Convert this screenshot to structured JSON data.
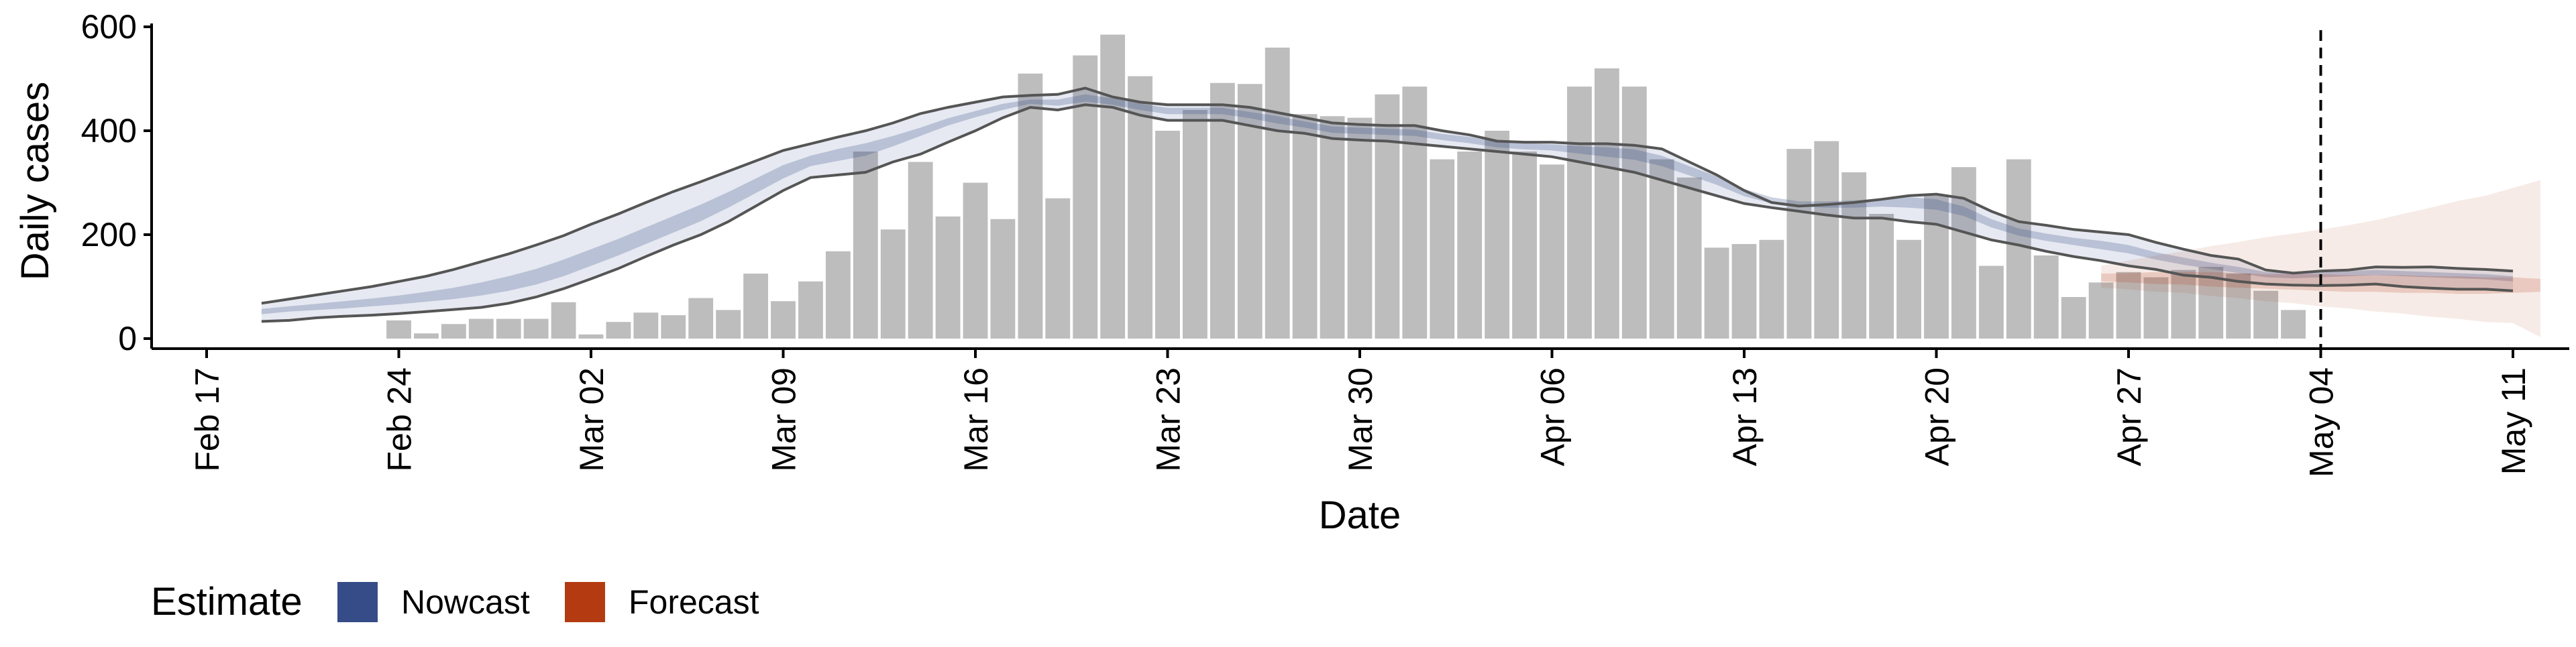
{
  "chart_data": {
    "type": "bar",
    "xlabel": "Date",
    "ylabel": "Daily cases",
    "ylim": [
      0,
      600
    ],
    "yticks": [
      0,
      200,
      400,
      600
    ],
    "xlim": [
      "2020-02-17",
      "2020-05-11"
    ],
    "xticks": [
      {
        "date": "2020-02-17",
        "label": "Feb 17"
      },
      {
        "date": "2020-02-24",
        "label": "Feb 24"
      },
      {
        "date": "2020-03-02",
        "label": "Mar 02"
      },
      {
        "date": "2020-03-09",
        "label": "Mar 09"
      },
      {
        "date": "2020-03-16",
        "label": "Mar 16"
      },
      {
        "date": "2020-03-23",
        "label": "Mar 23"
      },
      {
        "date": "2020-03-30",
        "label": "Mar 30"
      },
      {
        "date": "2020-04-06",
        "label": "Apr 06"
      },
      {
        "date": "2020-04-13",
        "label": "Apr 13"
      },
      {
        "date": "2020-04-20",
        "label": "Apr 20"
      },
      {
        "date": "2020-04-27",
        "label": "Apr 27"
      },
      {
        "date": "2020-05-04",
        "label": "May 04"
      },
      {
        "date": "2020-05-11",
        "label": "May 11"
      }
    ],
    "bars": {
      "start_date": "2020-02-24",
      "values": [
        35,
        10,
        28,
        38,
        38,
        38,
        70,
        8,
        32,
        50,
        45,
        78,
        55,
        125,
        72,
        110,
        168,
        360,
        210,
        340,
        235,
        300,
        230,
        510,
        270,
        545,
        585,
        505,
        400,
        440,
        492,
        490,
        560,
        432,
        428,
        425,
        470,
        485,
        345,
        360,
        400,
        360,
        335,
        485,
        520,
        485,
        345,
        310,
        175,
        182,
        190,
        365,
        380,
        320,
        240,
        190,
        275,
        330,
        140,
        345,
        160,
        80,
        108,
        128,
        118,
        132,
        138,
        125,
        92,
        55
      ]
    },
    "nowcast": {
      "start_date": "2020-02-19",
      "outer": [
        [
          33,
          68
        ],
        [
          35,
          76
        ],
        [
          40,
          84
        ],
        [
          43,
          92
        ],
        [
          45,
          100
        ],
        [
          48,
          110
        ],
        [
          52,
          120
        ],
        [
          56,
          133
        ],
        [
          60,
          148
        ],
        [
          68,
          163
        ],
        [
          80,
          180
        ],
        [
          96,
          198
        ],
        [
          115,
          220
        ],
        [
          135,
          240
        ],
        [
          158,
          262
        ],
        [
          180,
          283
        ],
        [
          200,
          302
        ],
        [
          225,
          322
        ],
        [
          255,
          342
        ],
        [
          285,
          362
        ],
        [
          310,
          375
        ],
        [
          315,
          388
        ],
        [
          320,
          400
        ],
        [
          340,
          415
        ],
        [
          355,
          433
        ],
        [
          378,
          445
        ],
        [
          400,
          455
        ],
        [
          425,
          465
        ],
        [
          445,
          468
        ],
        [
          440,
          470
        ],
        [
          450,
          482
        ],
        [
          445,
          465
        ],
        [
          430,
          455
        ],
        [
          420,
          450
        ],
        [
          420,
          450
        ],
        [
          420,
          450
        ],
        [
          410,
          445
        ],
        [
          400,
          435
        ],
        [
          395,
          425
        ],
        [
          385,
          415
        ],
        [
          382,
          412
        ],
        [
          380,
          410
        ],
        [
          375,
          410
        ],
        [
          370,
          400
        ],
        [
          365,
          392
        ],
        [
          360,
          380
        ],
        [
          355,
          378
        ],
        [
          350,
          378
        ],
        [
          340,
          375
        ],
        [
          330,
          375
        ],
        [
          320,
          372
        ],
        [
          305,
          365
        ],
        [
          290,
          340
        ],
        [
          275,
          315
        ],
        [
          260,
          285
        ],
        [
          252,
          262
        ],
        [
          245,
          255
        ],
        [
          238,
          258
        ],
        [
          232,
          262
        ],
        [
          232,
          268
        ],
        [
          225,
          275
        ],
        [
          220,
          278
        ],
        [
          205,
          270
        ],
        [
          190,
          245
        ],
        [
          180,
          225
        ],
        [
          168,
          218
        ],
        [
          158,
          210
        ],
        [
          150,
          205
        ],
        [
          140,
          200
        ],
        [
          133,
          185
        ],
        [
          122,
          172
        ],
        [
          118,
          160
        ],
        [
          110,
          153
        ],
        [
          105,
          132
        ],
        [
          103,
          126
        ],
        [
          102,
          130
        ],
        [
          103,
          132
        ],
        [
          105,
          138
        ],
        [
          100,
          137
        ],
        [
          97,
          138
        ],
        [
          95,
          135
        ],
        [
          95,
          133
        ],
        [
          92,
          130
        ]
      ],
      "inner": [
        [
          47,
          57
        ],
        [
          52,
          62
        ],
        [
          55,
          67
        ],
        [
          58,
          72
        ],
        [
          62,
          77
        ],
        [
          66,
          83
        ],
        [
          71,
          90
        ],
        [
          76,
          98
        ],
        [
          83,
          108
        ],
        [
          92,
          120
        ],
        [
          104,
          134
        ],
        [
          120,
          152
        ],
        [
          140,
          172
        ],
        [
          160,
          192
        ],
        [
          182,
          214
        ],
        [
          204,
          236
        ],
        [
          226,
          258
        ],
        [
          252,
          282
        ],
        [
          280,
          308
        ],
        [
          308,
          334
        ],
        [
          332,
          352
        ],
        [
          342,
          365
        ],
        [
          352,
          376
        ],
        [
          370,
          390
        ],
        [
          390,
          406
        ],
        [
          410,
          424
        ],
        [
          426,
          438
        ],
        [
          440,
          452
        ],
        [
          452,
          460
        ],
        [
          448,
          460
        ],
        [
          456,
          470
        ],
        [
          450,
          462
        ],
        [
          440,
          452
        ],
        [
          432,
          444
        ],
        [
          432,
          444
        ],
        [
          432,
          444
        ],
        [
          424,
          436
        ],
        [
          414,
          428
        ],
        [
          406,
          418
        ],
        [
          396,
          408
        ],
        [
          394,
          406
        ],
        [
          392,
          404
        ],
        [
          390,
          402
        ],
        [
          382,
          394
        ],
        [
          376,
          388
        ],
        [
          368,
          378
        ],
        [
          364,
          376
        ],
        [
          362,
          374
        ],
        [
          356,
          370
        ],
        [
          350,
          368
        ],
        [
          344,
          364
        ],
        [
          332,
          352
        ],
        [
          314,
          332
        ],
        [
          296,
          312
        ],
        [
          274,
          288
        ],
        [
          260,
          272
        ],
        [
          254,
          264
        ],
        [
          252,
          264
        ],
        [
          252,
          266
        ],
        [
          254,
          270
        ],
        [
          252,
          272
        ],
        [
          248,
          268
        ],
        [
          236,
          254
        ],
        [
          214,
          230
        ],
        [
          198,
          212
        ],
        [
          188,
          202
        ],
        [
          180,
          194
        ],
        [
          172,
          188
        ],
        [
          164,
          180
        ],
        [
          152,
          166
        ],
        [
          142,
          156
        ],
        [
          134,
          146
        ],
        [
          126,
          138
        ],
        [
          118,
          128
        ],
        [
          116,
          126
        ],
        [
          118,
          128
        ],
        [
          120,
          130
        ],
        [
          122,
          132
        ],
        [
          120,
          130
        ],
        [
          118,
          128
        ],
        [
          116,
          126
        ],
        [
          114,
          124
        ],
        [
          110,
          120
        ]
      ]
    },
    "forecast": {
      "start_date": "2020-04-26",
      "outer": [
        [
          98,
          140
        ],
        [
          95,
          150
        ],
        [
          90,
          160
        ],
        [
          88,
          168
        ],
        [
          82,
          178
        ],
        [
          78,
          186
        ],
        [
          72,
          195
        ],
        [
          68,
          202
        ],
        [
          62,
          210
        ],
        [
          58,
          218
        ],
        [
          52,
          228
        ],
        [
          48,
          240
        ],
        [
          42,
          252
        ],
        [
          38,
          265
        ],
        [
          32,
          275
        ],
        [
          30,
          290
        ],
        [
          3,
          305
        ]
      ],
      "inner": [
        [
          110,
          125
        ],
        [
          108,
          126
        ],
        [
          105,
          128
        ],
        [
          104,
          128
        ],
        [
          100,
          128
        ],
        [
          98,
          126
        ],
        [
          96,
          124
        ],
        [
          94,
          124
        ],
        [
          92,
          124
        ],
        [
          90,
          122
        ],
        [
          90,
          122
        ],
        [
          88,
          122
        ],
        [
          88,
          120
        ],
        [
          86,
          120
        ],
        [
          86,
          118
        ],
        [
          88,
          118
        ],
        [
          90,
          115
        ]
      ]
    },
    "vline_date": "2020-05-04",
    "legend": {
      "title": "Estimate",
      "position": "bottom-left",
      "items": [
        {
          "label": "Nowcast",
          "color": "#354C89"
        },
        {
          "label": "Forecast",
          "color": "#B43A12"
        }
      ]
    },
    "colors": {
      "bars": "#BDBDBD",
      "nowcast": "#354C89",
      "forecast": "#B43A12",
      "interval_line": "#555555"
    },
    "grid": false
  }
}
